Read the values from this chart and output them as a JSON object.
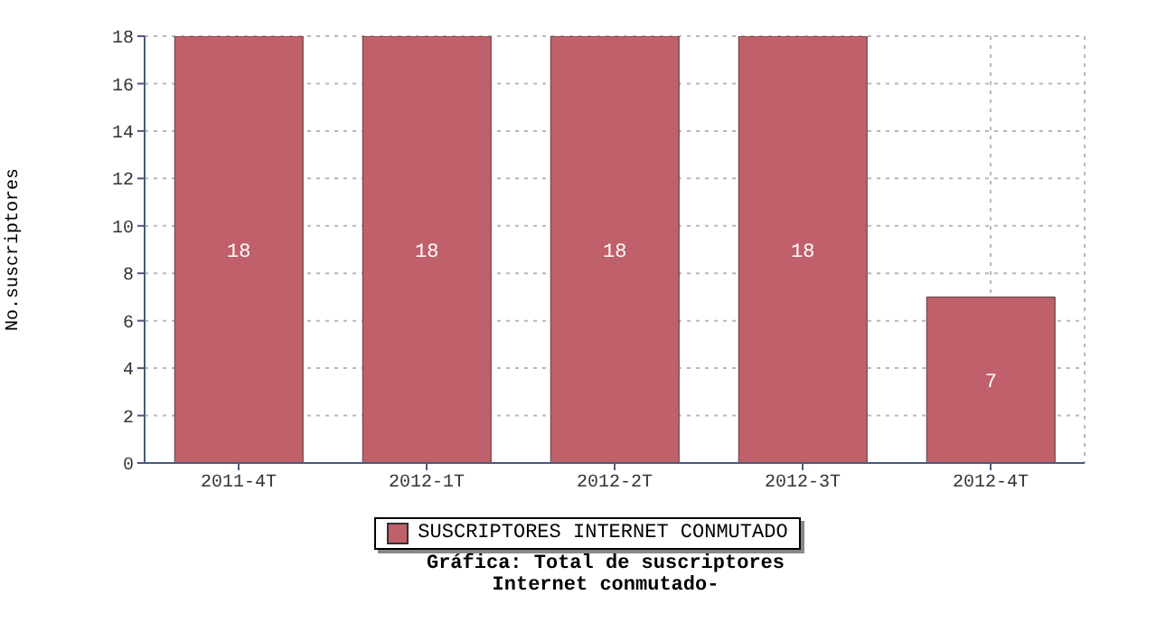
{
  "chart_data": {
    "type": "bar",
    "title": "Gráfica: Total de suscriptores\nInternet conmutado-",
    "ylabel": "No.suscriptores",
    "categories": [
      "2011-4T",
      "2012-1T",
      "2012-2T",
      "2012-3T",
      "2012-4T"
    ],
    "series": [
      {
        "name": "SUSCRIPTORES INTERNET CONMUTADO",
        "color": "#c0606a",
        "values": [
          18,
          18,
          18,
          18,
          7
        ]
      }
    ],
    "ylim": [
      0,
      18
    ],
    "yticks": [
      0,
      2,
      4,
      6,
      8,
      10,
      12,
      14,
      16,
      18
    ],
    "grid": true,
    "legend": "bottom",
    "data_labels": true
  }
}
